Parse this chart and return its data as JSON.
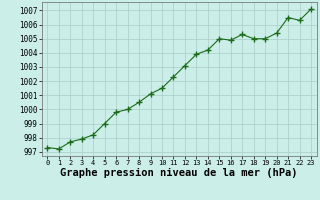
{
  "x": [
    0,
    1,
    2,
    3,
    4,
    5,
    6,
    7,
    8,
    9,
    10,
    11,
    12,
    13,
    14,
    15,
    16,
    17,
    18,
    19,
    20,
    21,
    22,
    23
  ],
  "y": [
    997.3,
    997.2,
    997.7,
    997.9,
    998.2,
    999.0,
    999.8,
    1000.0,
    1000.5,
    1001.1,
    1001.5,
    1002.3,
    1003.1,
    1003.9,
    1004.2,
    1005.0,
    1004.9,
    1005.3,
    1005.0,
    1005.0,
    1005.4,
    1006.5,
    1006.3,
    1007.1
  ],
  "line_color": "#1a6b1a",
  "marker": "+",
  "marker_size": 4,
  "bg_color": "#cceee8",
  "grid_color": "#aaccc8",
  "xlabel": "Graphe pression niveau de la mer (hPa)",
  "xlabel_fontsize": 7.5,
  "ytick_labels": [
    997,
    998,
    999,
    1000,
    1001,
    1002,
    1003,
    1004,
    1005,
    1006,
    1007
  ],
  "xtick_labels": [
    "0",
    "1",
    "2",
    "3",
    "4",
    "5",
    "6",
    "7",
    "8",
    "9",
    "10",
    "11",
    "12",
    "13",
    "14",
    "15",
    "16",
    "17",
    "18",
    "19",
    "20",
    "21",
    "22",
    "23"
  ],
  "ylim": [
    996.7,
    1007.6
  ],
  "xlim": [
    -0.5,
    23.5
  ]
}
